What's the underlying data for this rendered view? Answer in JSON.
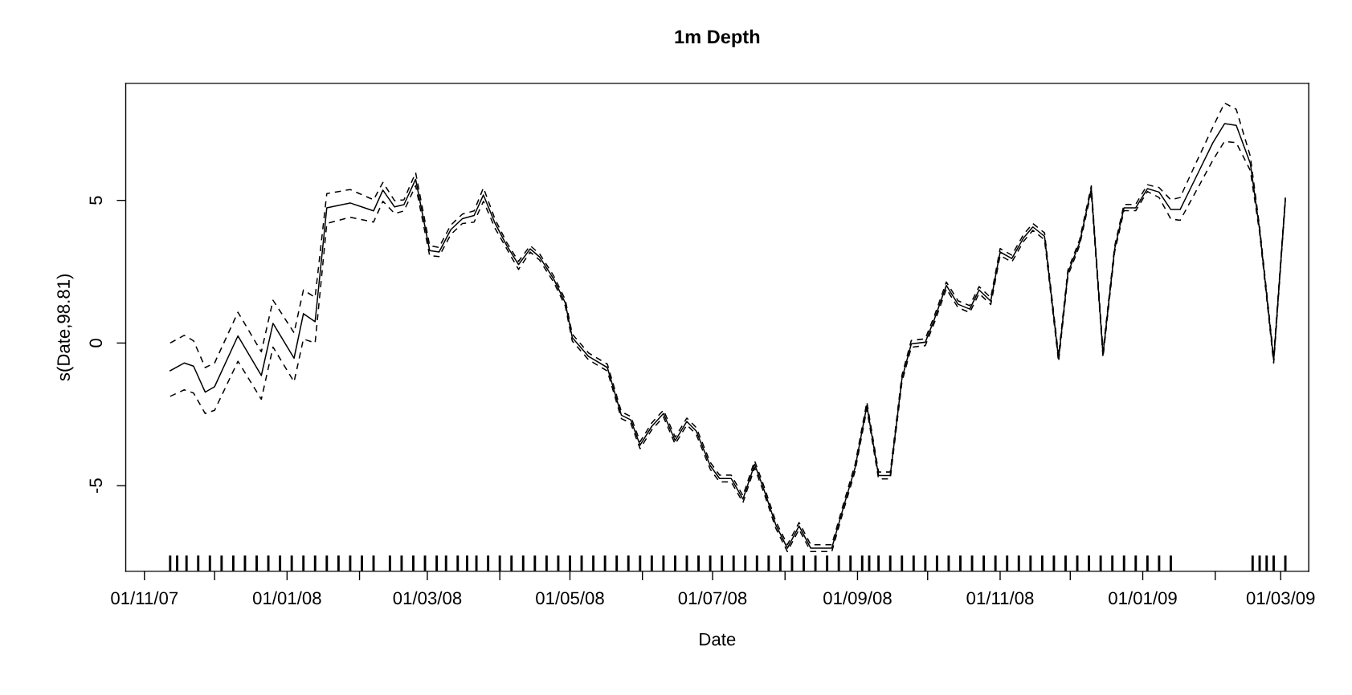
{
  "chart_data": {
    "type": "line",
    "title": "1m Depth",
    "xlabel": "Date",
    "ylabel": "s(Date,98.81)",
    "x": [
      "2007-11-12",
      "2007-11-18",
      "2007-11-22",
      "2007-11-27",
      "2007-12-01",
      "2007-12-11",
      "2007-12-21",
      "2007-12-26",
      "2008-01-04",
      "2008-01-08",
      "2008-01-13",
      "2008-01-18",
      "2008-01-28",
      "2008-02-07",
      "2008-02-11",
      "2008-02-16",
      "2008-02-20",
      "2008-02-25",
      "2008-03-02",
      "2008-03-06",
      "2008-03-11",
      "2008-03-16",
      "2008-03-21",
      "2008-03-25",
      "2008-03-30",
      "2008-04-04",
      "2008-04-09",
      "2008-04-14",
      "2008-04-18",
      "2008-04-24",
      "2008-04-29",
      "2008-05-02",
      "2008-05-09",
      "2008-05-17",
      "2008-05-23",
      "2008-05-27",
      "2008-05-31",
      "2008-06-05",
      "2008-06-10",
      "2008-06-15",
      "2008-06-20",
      "2008-06-24",
      "2008-06-30",
      "2008-07-04",
      "2008-07-09",
      "2008-07-14",
      "2008-07-19",
      "2008-07-23",
      "2008-07-28",
      "2008-08-02",
      "2008-08-07",
      "2008-08-12",
      "2008-08-21",
      "2008-08-26",
      "2008-08-31",
      "2008-09-05",
      "2008-09-10",
      "2008-09-15",
      "2008-09-20",
      "2008-09-24",
      "2008-09-30",
      "2008-10-04",
      "2008-10-09",
      "2008-10-14",
      "2008-10-19",
      "2008-10-23",
      "2008-10-28",
      "2008-11-01",
      "2008-11-06",
      "2008-11-11",
      "2008-11-15",
      "2008-11-20",
      "2008-11-26",
      "2008-11-30",
      "2008-12-05",
      "2008-12-10",
      "2008-12-15",
      "2008-12-20",
      "2008-12-24",
      "2008-12-29",
      "2009-01-03",
      "2009-01-08",
      "2009-01-13",
      "2009-01-17",
      "2009-01-24",
      "2009-01-31",
      "2009-02-05",
      "2009-02-10",
      "2009-02-16",
      "2009-02-20",
      "2009-02-26",
      "2009-03-03"
    ],
    "series": [
      {
        "color": "#000000",
        "line_style": "solid",
        "values": [
          -0.97,
          -0.7,
          -0.81,
          -1.72,
          -1.53,
          0.25,
          -1.14,
          0.69,
          -0.53,
          1.03,
          0.75,
          4.74,
          4.91,
          4.63,
          5.36,
          4.77,
          4.85,
          5.74,
          3.24,
          3.19,
          3.97,
          4.36,
          4.47,
          5.19,
          4.19,
          3.41,
          2.75,
          3.3,
          3.02,
          2.25,
          1.41,
          0.19,
          -0.47,
          -0.86,
          -2.53,
          -2.69,
          -3.58,
          -2.92,
          -2.47,
          -3.42,
          -2.75,
          -3.08,
          -4.3,
          -4.75,
          -4.75,
          -5.47,
          -4.25,
          -5.14,
          -6.36,
          -7.19,
          -6.41,
          -7.19,
          -7.19,
          -5.75,
          -4.36,
          -2.19,
          -4.64,
          -4.64,
          -1.25,
          -0.03,
          0.03,
          0.86,
          2.02,
          1.36,
          1.19,
          1.86,
          1.47,
          3.19,
          2.96,
          3.68,
          4.07,
          3.74,
          -0.55,
          2.46,
          3.52,
          5.41,
          -0.4,
          3.3,
          4.74,
          4.74,
          5.41,
          5.29,
          4.68,
          4.68,
          5.85,
          7.02,
          7.69,
          7.63,
          6.3,
          3.96,
          -0.6,
          5.05
        ]
      },
      {
        "color": "#000000",
        "line_style": "dashed",
        "values": [
          0.0,
          0.27,
          0.08,
          -0.86,
          -0.7,
          1.08,
          -0.31,
          1.5,
          0.36,
          1.86,
          1.6,
          5.24,
          5.38,
          5.02,
          5.63,
          4.99,
          5.02,
          5.97,
          3.41,
          3.35,
          4.13,
          4.52,
          4.63,
          5.44,
          4.33,
          3.52,
          2.86,
          3.41,
          3.13,
          2.36,
          1.52,
          0.31,
          -0.35,
          -0.74,
          -2.41,
          -2.57,
          -3.46,
          -2.8,
          -2.35,
          -3.3,
          -2.63,
          -2.96,
          -4.18,
          -4.63,
          -4.63,
          -5.35,
          -4.13,
          -5.02,
          -6.24,
          -7.07,
          -6.29,
          -7.07,
          -7.07,
          -5.63,
          -4.24,
          -2.07,
          -4.52,
          -4.52,
          -1.13,
          0.09,
          0.15,
          0.98,
          2.14,
          1.48,
          1.31,
          1.98,
          1.59,
          3.31,
          3.08,
          3.8,
          4.19,
          3.86,
          -0.45,
          2.56,
          3.62,
          5.51,
          -0.3,
          3.4,
          4.86,
          4.86,
          5.55,
          5.45,
          5.02,
          5.1,
          6.35,
          7.57,
          8.41,
          8.19,
          6.55,
          4.06,
          -0.5,
          5.1
        ]
      },
      {
        "color": "#000000",
        "line_style": "dashed",
        "values": [
          -1.87,
          -1.64,
          -1.75,
          -2.47,
          -2.36,
          -0.64,
          -1.97,
          -0.14,
          -1.36,
          0.14,
          0.0,
          4.19,
          4.41,
          4.24,
          4.97,
          4.54,
          4.63,
          5.52,
          3.06,
          3.03,
          3.8,
          4.19,
          4.24,
          4.97,
          4.02,
          3.3,
          2.58,
          3.19,
          2.91,
          2.14,
          1.3,
          0.07,
          -0.59,
          -0.98,
          -2.65,
          -2.81,
          -3.7,
          -3.04,
          -2.59,
          -3.54,
          -2.87,
          -3.2,
          -4.42,
          -4.87,
          -4.87,
          -5.59,
          -4.37,
          -5.26,
          -6.48,
          -7.31,
          -6.53,
          -7.31,
          -7.31,
          -5.87,
          -4.48,
          -2.31,
          -4.76,
          -4.76,
          -1.37,
          -0.15,
          -0.09,
          0.74,
          1.9,
          1.24,
          1.07,
          1.74,
          1.35,
          3.07,
          2.84,
          3.56,
          3.95,
          3.62,
          -0.65,
          2.36,
          3.42,
          5.31,
          -0.5,
          3.2,
          4.64,
          4.64,
          5.31,
          5.1,
          4.35,
          4.3,
          5.35,
          6.41,
          7.07,
          7.02,
          6.05,
          3.86,
          -0.7,
          5.0
        ]
      },
      {
        "type": "bar",
        "color": "#000000",
        "values": [
          0.55,
          0.55,
          0.55,
          0.55,
          0.55,
          0.55,
          0.55,
          0.55,
          0.55,
          0.55,
          0.55,
          0.55,
          0.55,
          0.55,
          0.55,
          0.55,
          0.55,
          0.55,
          0.55,
          0.55,
          0.55,
          0.55,
          0.55,
          0.55,
          0.55,
          0.55,
          0.55,
          0.55,
          0.55,
          0.55,
          0.55,
          0.55,
          0.55,
          0.55,
          0.55,
          0.55,
          0.55,
          0.55,
          0.55,
          0.55,
          0.55,
          0.55,
          0.55,
          0.55,
          0.55,
          0.55,
          0.55,
          0.55,
          0.55,
          0.55,
          0.55,
          0.55,
          0.55,
          0.55,
          0.55,
          0.55,
          0.55,
          0.55,
          0.55,
          0.55,
          0.55,
          0.55,
          0.55,
          0.55,
          0.55,
          0.55,
          0.55,
          0.55,
          0.55,
          0.55,
          0.55,
          0.55,
          0.55,
          0.55,
          0.55,
          0.55,
          0.55,
          0.55,
          0.55,
          0.55,
          0.55,
          0.55,
          0.55,
          0.55,
          0.55,
          0.55,
          0.55,
          0.55,
          0.55,
          0.55,
          0.55,
          0.55,
          0.55
        ],
        "base": [
          -8.0,
          -8.0,
          -8.0,
          -8.0,
          -8.0,
          -8.0,
          -8.0,
          -8.0,
          -8.0,
          -8.0,
          -8.0,
          -8.0,
          -8.0,
          -8.0,
          -8.0,
          -8.0,
          -8.0,
          -8.0,
          -8.0,
          -8.0,
          -8.0,
          -8.0,
          -8.0,
          -8.0,
          -8.0,
          -8.0,
          -8.0,
          -8.0,
          -8.0,
          -8.0,
          -8.0,
          -8.0,
          -8.0,
          -8.0,
          -8.0,
          -8.0,
          -8.0,
          -8.0,
          -8.0,
          -8.0,
          -8.0,
          -8.0,
          -8.0,
          -8.0,
          -8.0,
          -8.0,
          -8.0,
          -8.0,
          -8.0,
          -8.0,
          -8.0,
          -8.0,
          -8.0,
          -8.0,
          -8.0,
          -8.0,
          -8.0,
          -8.0,
          -8.0,
          -8.0,
          -8.0,
          -8.0,
          -8.0,
          -8.0,
          -8.0,
          -8.0,
          -8.0,
          -8.0,
          -8.0,
          -8.0,
          -8.0,
          -8.0,
          -8.0,
          -8.0,
          -8.0,
          -8.0,
          -8.0,
          -8.0,
          -8.0,
          -8.0,
          -8.0,
          -8.0,
          -8.0,
          -8.0,
          -8.0,
          -8.0,
          -8.0,
          -8.0,
          -8.0,
          -8.0,
          -8.0,
          -8.0,
          -8.0
        ],
        "x": [
          "2007-11-12",
          "2007-11-15",
          "2007-11-19",
          "2007-11-24",
          "2007-11-29",
          "2007-12-04",
          "2007-12-09",
          "2007-12-14",
          "2007-12-19",
          "2007-12-24",
          "2007-12-29",
          "2008-01-03",
          "2008-01-08",
          "2008-01-13",
          "2008-01-18",
          "2008-01-23",
          "2008-01-28",
          "2008-02-02",
          "2008-02-07",
          "2008-02-14",
          "2008-02-19",
          "2008-02-24",
          "2008-02-29",
          "2008-03-05",
          "2008-03-09",
          "2008-03-14",
          "2008-03-18",
          "2008-03-22",
          "2008-03-27",
          "2008-04-01",
          "2008-04-06",
          "2008-04-11",
          "2008-04-16",
          "2008-04-21",
          "2008-04-26",
          "2008-05-01",
          "2008-05-06",
          "2008-05-11",
          "2008-05-16",
          "2008-05-21",
          "2008-05-26",
          "2008-05-31",
          "2008-06-05",
          "2008-06-10",
          "2008-06-15",
          "2008-06-20",
          "2008-06-25",
          "2008-06-30",
          "2008-07-05",
          "2008-07-10",
          "2008-07-15",
          "2008-07-20",
          "2008-07-25",
          "2008-07-30",
          "2008-08-04",
          "2008-08-09",
          "2008-08-14",
          "2008-08-19",
          "2008-08-24",
          "2008-08-29",
          "2008-09-03",
          "2008-09-06",
          "2008-09-10",
          "2008-09-15",
          "2008-09-20",
          "2008-09-25",
          "2008-09-30",
          "2008-10-05",
          "2008-10-10",
          "2008-10-15",
          "2008-10-20",
          "2008-10-25",
          "2008-10-30",
          "2008-11-04",
          "2008-11-09",
          "2008-11-14",
          "2008-11-19",
          "2008-11-24",
          "2008-11-29",
          "2008-12-04",
          "2008-12-09",
          "2008-12-14",
          "2008-12-19",
          "2008-12-24",
          "2008-12-29",
          "2009-01-03",
          "2009-01-08",
          "2009-01-13",
          "2009-02-17",
          "2009-02-20",
          "2009-02-23",
          "2009-02-26",
          "2009-03-03"
        ]
      }
    ],
    "xlim": [
      "2007-10-24",
      "2009-03-13"
    ],
    "xticks": [
      {
        "value": "2007-11-01",
        "label": "01/11/07"
      },
      {
        "value": "2007-12-01",
        "label": null
      },
      {
        "value": "2008-01-01",
        "label": "01/01/08"
      },
      {
        "value": "2008-02-01",
        "label": null
      },
      {
        "value": "2008-03-01",
        "label": "01/03/08"
      },
      {
        "value": "2008-04-01",
        "label": null
      },
      {
        "value": "2008-05-01",
        "label": "01/05/08"
      },
      {
        "value": "2008-06-01",
        "label": null
      },
      {
        "value": "2008-07-01",
        "label": "01/07/08"
      },
      {
        "value": "2008-08-01",
        "label": null
      },
      {
        "value": "2008-09-01",
        "label": "01/09/08"
      },
      {
        "value": "2008-10-01",
        "label": null
      },
      {
        "value": "2008-11-01",
        "label": "01/11/08"
      },
      {
        "value": "2008-12-01",
        "label": null
      },
      {
        "value": "2009-01-01",
        "label": "01/01/09"
      },
      {
        "value": "2009-02-01",
        "label": null
      },
      {
        "value": "2009-03-01",
        "label": "01/03/09"
      }
    ],
    "ylim": [
      -8.0,
      9.1
    ],
    "yticks": [
      -5,
      0,
      5
    ],
    "grid": false
  }
}
